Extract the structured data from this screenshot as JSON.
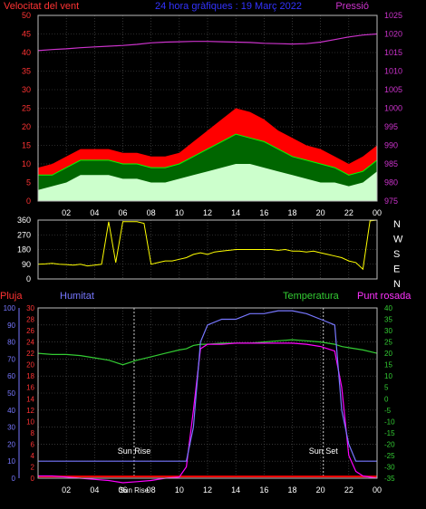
{
  "colors": {
    "background": "#000000",
    "frame": "#bbbbbb",
    "grid": "#555555",
    "wind_gust": "#ff0000",
    "wind_avg": "#00bb00",
    "wind_min": "#ccffcc",
    "pressure": "#cc33cc",
    "direction": "#ffff00",
    "rain": "#ff0000",
    "humidity": "#7777ff",
    "temperature": "#33cc33",
    "dewpoint": "#ff00ff",
    "axis_red": "#ff3333",
    "axis_blue": "#7777ff",
    "axis_green": "#33cc33",
    "axis_magenta": "#ff33ff",
    "white": "#ffffff"
  },
  "chart_data": [
    {
      "type": "line",
      "name": "wind-and-pressure",
      "title": "24 hora gràfiques : 19 Març 2022",
      "left_axis_label": "Velocitat del vent",
      "right_axis_label": "Pressió",
      "x_ticks": [
        "02",
        "04",
        "06",
        "08",
        "10",
        "12",
        "14",
        "16",
        "18",
        "20",
        "22",
        "00"
      ],
      "left_ylim": [
        0,
        50
      ],
      "left_ticks": [
        0,
        5,
        10,
        15,
        20,
        25,
        30,
        35,
        40,
        45,
        50
      ],
      "right_ylim": [
        975,
        1025
      ],
      "right_ticks": [
        975,
        980,
        985,
        990,
        995,
        1000,
        1005,
        1010,
        1015,
        1020,
        1025
      ],
      "hours": [
        0,
        1,
        2,
        3,
        4,
        5,
        6,
        7,
        8,
        9,
        10,
        11,
        12,
        13,
        14,
        15,
        16,
        17,
        18,
        19,
        20,
        21,
        22,
        23,
        24
      ],
      "series": {
        "gust": [
          9,
          10,
          12,
          14,
          14,
          14,
          13,
          13,
          12,
          12,
          13,
          16,
          19,
          22,
          25,
          24,
          22,
          19,
          17,
          15,
          14,
          12,
          10,
          12,
          15
        ],
        "average": [
          7,
          7,
          9,
          11,
          11,
          11,
          10,
          10,
          9,
          9,
          10,
          12,
          14,
          16,
          18,
          17,
          16,
          14,
          12,
          11,
          10,
          9,
          7,
          8,
          11
        ],
        "minimum": [
          3,
          4,
          5,
          7,
          7,
          7,
          6,
          6,
          5,
          5,
          6,
          7,
          8,
          9,
          10,
          10,
          9,
          8,
          7,
          6,
          5,
          5,
          4,
          5,
          8
        ],
        "pressure": [
          1015.5,
          1015.8,
          1016.0,
          1016.3,
          1016.5,
          1016.7,
          1016.9,
          1017.2,
          1017.6,
          1017.8,
          1017.9,
          1018.0,
          1018.0,
          1017.9,
          1017.8,
          1017.7,
          1017.5,
          1017.4,
          1017.3,
          1017.4,
          1017.8,
          1018.5,
          1019.2,
          1019.7,
          1020.0
        ]
      }
    },
    {
      "type": "scatter",
      "name": "wind-direction",
      "ylim": [
        0,
        360
      ],
      "left_ticks": [
        0,
        90,
        180,
        270,
        360
      ],
      "compass_labels": [
        "N",
        "W",
        "S",
        "E",
        "N"
      ],
      "hours": [
        0,
        0.5,
        1,
        1.5,
        2,
        2.5,
        3,
        3.5,
        4,
        4.5,
        5,
        5.5,
        6,
        6.5,
        7,
        7.5,
        8,
        8.5,
        9,
        9.5,
        10,
        10.5,
        11,
        11.5,
        12,
        12.5,
        13,
        13.5,
        14,
        14.5,
        15,
        15.5,
        16,
        16.5,
        17,
        17.5,
        18,
        18.5,
        19,
        19.5,
        20,
        20.5,
        21,
        21.5,
        22,
        22.5,
        23,
        23.5,
        24
      ],
      "values": [
        90,
        92,
        95,
        90,
        88,
        85,
        90,
        80,
        85,
        90,
        350,
        100,
        350,
        350,
        350,
        340,
        90,
        100,
        110,
        110,
        120,
        130,
        150,
        160,
        150,
        165,
        170,
        175,
        180,
        180,
        180,
        180,
        180,
        180,
        175,
        180,
        170,
        170,
        165,
        170,
        160,
        150,
        140,
        130,
        110,
        100,
        60,
        355,
        360
      ]
    },
    {
      "type": "line",
      "name": "rain-humidity-temperature",
      "labels": {
        "rain": "Pluja",
        "humidity": "Humitat",
        "temperature": "Temperatura",
        "dewpoint": "Punt rosada"
      },
      "x_ticks": [
        "02",
        "04",
        "06",
        "08",
        "10",
        "12",
        "14",
        "16",
        "18",
        "20",
        "22",
        "00"
      ],
      "rain_ylim": [
        0,
        100
      ],
      "rain_ticks": [
        0,
        10,
        20,
        30,
        40,
        50,
        60,
        70,
        80,
        90,
        100
      ],
      "humidity_ylim": [
        0,
        30
      ],
      "humidity_ticks": [
        0,
        2,
        4,
        6,
        8,
        10,
        12,
        14,
        16,
        18,
        20,
        22,
        24,
        26,
        28,
        30
      ],
      "temp_ylim": [
        -35,
        40
      ],
      "temp_ticks": [
        -35,
        -30,
        -25,
        -20,
        -15,
        -10,
        -5,
        0,
        5,
        10,
        15,
        20,
        25,
        30,
        35,
        40
      ],
      "markers": {
        "sunrise_label": "Sun Rise",
        "sunset_label": "Sun Set",
        "sunrise_hour": 6.8,
        "sunset_hour": 20.2,
        "bottom_label": "Sun Rise"
      },
      "hours": [
        0,
        1,
        2,
        3,
        4,
        5,
        6,
        7,
        8,
        9,
        10,
        10.5,
        11,
        11.5,
        12,
        13,
        14,
        15,
        16,
        17,
        18,
        19,
        20,
        21,
        21.5,
        22,
        22.5,
        23,
        24
      ],
      "series": {
        "humidity": [
          3,
          3,
          3,
          3,
          3,
          3,
          3,
          3,
          3,
          3,
          3,
          3,
          9,
          24,
          27,
          28,
          28,
          29,
          29,
          29.5,
          29.5,
          29,
          28,
          27,
          12,
          6,
          3,
          3,
          3
        ],
        "temperature": [
          20,
          19.5,
          19.5,
          19,
          18,
          17,
          15,
          17,
          18.5,
          20,
          21.5,
          22,
          23.5,
          24,
          24,
          24.5,
          24.5,
          24.5,
          25,
          25.5,
          26,
          25.5,
          25,
          24,
          23,
          22.5,
          22,
          21.5,
          20
        ],
        "dewpoint": [
          -34,
          -34,
          -34.5,
          -35,
          -35.5,
          -36,
          -37,
          -36.5,
          -36,
          -35,
          -34.5,
          -30,
          -5,
          22,
          24,
          24,
          24.5,
          24.5,
          24.5,
          24.5,
          24.5,
          24,
          23,
          21,
          5,
          -25,
          -32,
          -34,
          -35
        ],
        "rain": [
          1,
          1,
          1,
          1,
          1,
          1,
          1,
          1,
          1,
          1,
          1,
          1,
          1,
          1,
          1,
          1,
          1,
          1,
          1,
          1,
          1,
          1,
          1,
          1,
          1,
          1,
          1,
          1,
          1
        ]
      }
    }
  ]
}
